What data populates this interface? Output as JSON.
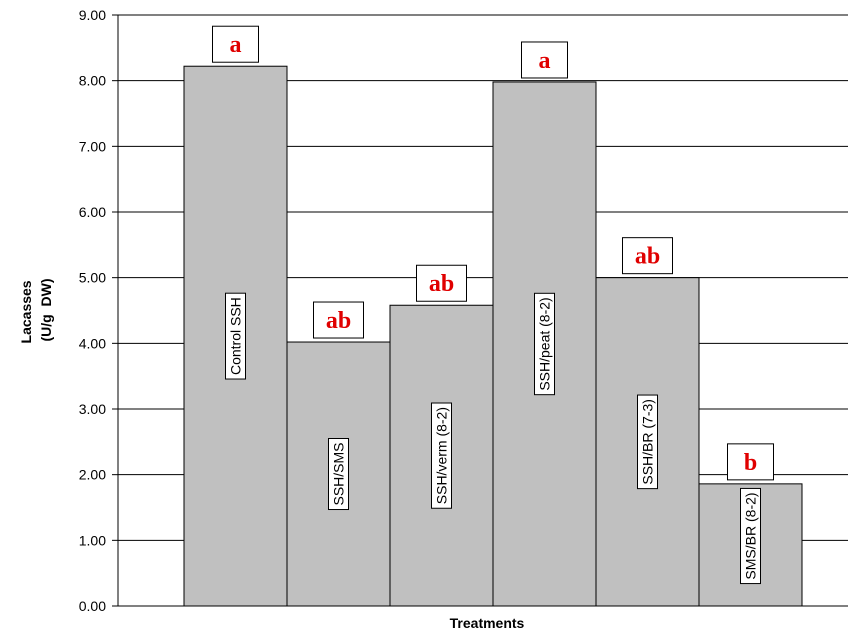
{
  "chart_data": {
    "type": "bar",
    "categories": [
      "Control SSH",
      "SSH/SMS",
      "SSH/verm (8-2)",
      "SSH/peat (8-2)",
      "SSH/BR (7-3)",
      "SMS/BR (8-2)"
    ],
    "values": [
      8.22,
      4.02,
      4.58,
      7.98,
      5.0,
      1.86
    ],
    "significance": [
      "a",
      "ab",
      "ab",
      "a",
      "ab",
      "b"
    ],
    "xlabel": "Treatments",
    "ylabel_lines": [
      "Lacasses",
      "(U/g  DW)"
    ],
    "ylim": [
      0,
      9
    ],
    "yticks": [
      "0.00",
      "1.00",
      "2.00",
      "3.00",
      "4.00",
      "5.00",
      "6.00",
      "7.00",
      "8.00",
      "9.00"
    ],
    "grid": true,
    "colors": {
      "bar": "#c0c0c0",
      "significance": "#e00000",
      "grid": "#000000"
    }
  }
}
